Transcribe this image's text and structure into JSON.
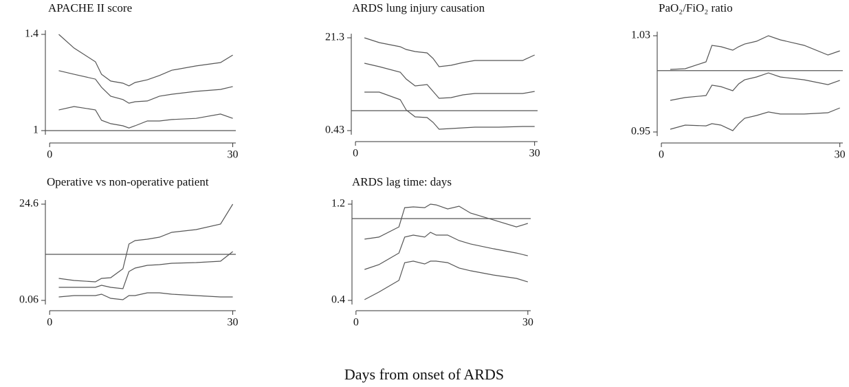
{
  "x_label": "Days from onset of ARDS",
  "chart_data": [
    {
      "type": "line",
      "title": "APACHE II score",
      "x": [
        1.5,
        4,
        7.5,
        8.5,
        10,
        12,
        13,
        14,
        16,
        18,
        20,
        24,
        28,
        30
      ],
      "xlim": [
        -0.7,
        30.5
      ],
      "xticks": [
        0,
        30
      ],
      "ylim": [
        1,
        1.4
      ],
      "yticks": [
        1,
        1.4
      ],
      "reference_line": 1,
      "series": [
        {
          "color": "#555555",
          "values": [
            1.4,
            1.343,
            1.286,
            1.234,
            1.206,
            1.197,
            1.186,
            1.2,
            1.211,
            1.229,
            1.251,
            1.269,
            1.283,
            1.314
          ]
        },
        {
          "color": "#555555",
          "values": [
            1.249,
            1.234,
            1.214,
            1.18,
            1.143,
            1.129,
            1.114,
            1.12,
            1.123,
            1.143,
            1.151,
            1.163,
            1.171,
            1.183
          ]
        },
        {
          "color": "#555555",
          "values": [
            1.086,
            1.1,
            1.086,
            1.043,
            1.029,
            1.02,
            1.011,
            1.02,
            1.04,
            1.04,
            1.046,
            1.051,
            1.069,
            1.051
          ]
        }
      ]
    },
    {
      "type": "line",
      "title": "ARDS lung injury causation",
      "x": [
        1.5,
        4,
        7.5,
        8.5,
        10,
        12,
        13,
        14,
        16,
        18,
        20,
        24,
        28,
        30
      ],
      "xlim": [
        -0.7,
        30.5
      ],
      "xticks": [
        0,
        30
      ],
      "ylim": [
        0.43,
        21.3
      ],
      "yticks": [
        0.43,
        21.3
      ],
      "reference_line": 4.91,
      "series": [
        {
          "color": "#555555",
          "values": [
            21.3,
            20.22,
            19.29,
            18.67,
            18.21,
            17.9,
            16.66,
            14.81,
            15.12,
            15.73,
            16.2,
            16.2,
            16.2,
            17.43
          ]
        },
        {
          "color": "#555555",
          "values": [
            15.58,
            14.81,
            13.57,
            12.02,
            10.48,
            10.79,
            9.24,
            7.7,
            7.85,
            8.47,
            8.78,
            8.78,
            8.78,
            9.24
          ]
        },
        {
          "color": "#555555",
          "values": [
            9.09,
            9.09,
            7.39,
            5.07,
            3.52,
            3.37,
            2.29,
            0.74,
            0.9,
            1.05,
            1.2,
            1.2,
            1.36,
            1.36
          ]
        }
      ]
    },
    {
      "type": "line",
      "title": "PaO₂/FiO₂ ratio",
      "x": [
        1.5,
        4,
        7.5,
        8.5,
        10,
        12,
        13,
        14,
        16,
        18,
        20,
        24,
        28,
        30
      ],
      "xlim": [
        -0.7,
        30.5
      ],
      "xticks": [
        0,
        30
      ],
      "ylim": [
        0.95,
        1.03
      ],
      "yticks": [
        0.95,
        1.03
      ],
      "reference_line": 1.001,
      "series": [
        {
          "color": "#555555",
          "values": [
            1.002,
            1.0026,
            1.0083,
            1.022,
            1.0209,
            1.018,
            1.0209,
            1.0231,
            1.0254,
            1.03,
            1.0266,
            1.022,
            1.014,
            1.0174
          ]
        },
        {
          "color": "#555555",
          "values": [
            0.9763,
            0.9786,
            0.9803,
            0.9889,
            0.9877,
            0.9843,
            0.99,
            0.9934,
            0.9957,
            0.9991,
            0.9957,
            0.9934,
            0.9894,
            0.9929
          ]
        },
        {
          "color": "#555555",
          "values": [
            0.9523,
            0.9557,
            0.9551,
            0.9569,
            0.9557,
            0.9511,
            0.9569,
            0.9614,
            0.9637,
            0.9666,
            0.9649,
            0.9649,
            0.966,
            0.97
          ]
        }
      ]
    },
    {
      "type": "line",
      "title": "Operative vs non-operative patient",
      "x": [
        1.5,
        4,
        7.5,
        8.5,
        10,
        12,
        13,
        14,
        16,
        18,
        20,
        24,
        28,
        30
      ],
      "xlim": [
        -0.7,
        30.5
      ],
      "xticks": [
        0,
        30
      ],
      "ylim": [
        0.06,
        24.6
      ],
      "yticks": [
        0.06,
        24.6
      ],
      "reference_line": 11.8,
      "series": [
        {
          "color": "#555555",
          "values": [
            5.67,
            5.14,
            4.79,
            5.67,
            5.84,
            8.12,
            14.43,
            15.31,
            15.66,
            16.19,
            17.41,
            18.11,
            19.52,
            24.6
          ]
        },
        {
          "color": "#555555",
          "values": [
            3.39,
            3.39,
            3.39,
            3.91,
            3.39,
            3.04,
            7.42,
            8.3,
            9.0,
            9.17,
            9.52,
            9.7,
            10.05,
            12.5
          ]
        },
        {
          "color": "#555555",
          "values": [
            0.93,
            1.28,
            1.28,
            1.64,
            0.58,
            0.23,
            1.28,
            1.28,
            1.99,
            1.99,
            1.64,
            1.28,
            0.93,
            0.93
          ]
        }
      ]
    },
    {
      "type": "line",
      "title": "ARDS lag time: days",
      "x": [
        1.5,
        4,
        7.5,
        8.5,
        10,
        12,
        13,
        14,
        16,
        18,
        20,
        24,
        28,
        30
      ],
      "xlim": [
        -0.7,
        30.5
      ],
      "xticks": [
        0,
        30
      ],
      "ylim": [
        0.4,
        1.2
      ],
      "yticks": [
        0.4,
        1.2
      ],
      "reference_line": 1.08,
      "series": [
        {
          "color": "#555555",
          "values": [
            0.909,
            0.926,
            1.011,
            1.171,
            1.177,
            1.171,
            1.2,
            1.194,
            1.16,
            1.183,
            1.126,
            1.069,
            1.011,
            1.04
          ]
        },
        {
          "color": "#555555",
          "values": [
            0.657,
            0.697,
            0.794,
            0.926,
            0.943,
            0.926,
            0.966,
            0.943,
            0.943,
            0.897,
            0.869,
            0.829,
            0.794,
            0.771
          ]
        },
        {
          "color": "#555555",
          "values": [
            0.406,
            0.469,
            0.566,
            0.714,
            0.726,
            0.703,
            0.726,
            0.726,
            0.714,
            0.669,
            0.646,
            0.611,
            0.583,
            0.554
          ]
        }
      ]
    }
  ]
}
